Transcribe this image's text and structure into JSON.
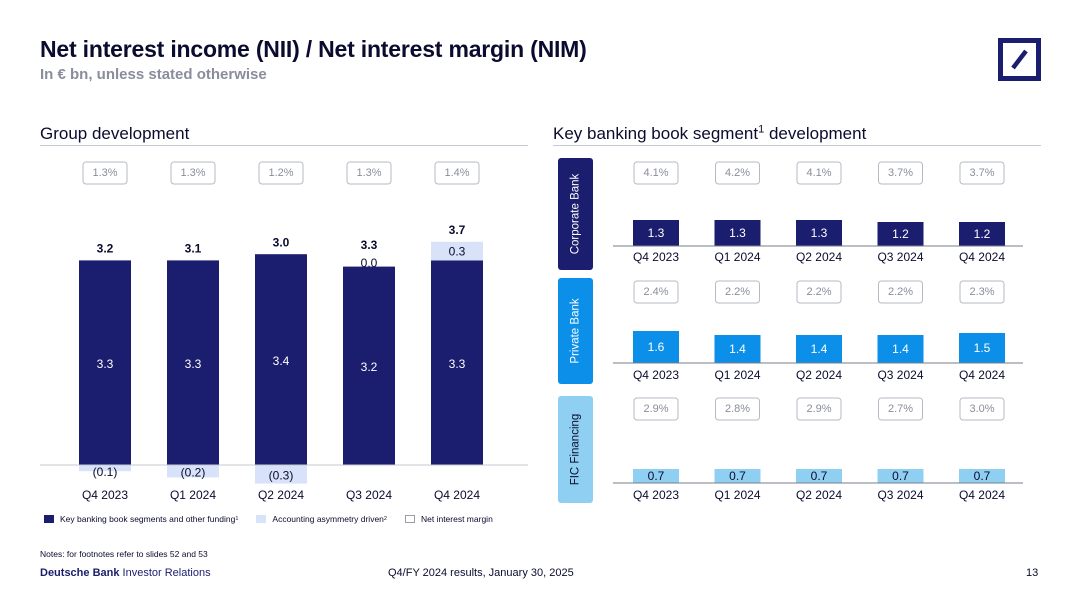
{
  "header": {
    "title": "Net interest income (NII) / Net interest margin (NIM)",
    "subtitle": "In € bn, unless stated otherwise"
  },
  "colors": {
    "navy": "#1b1d6e",
    "light_blue": "#d8e2f8",
    "private_blue": "#0b8fe8",
    "fic_blue": "#8fd0f2",
    "nim_border": "#b7bac4",
    "nim_text": "#8a8d9c"
  },
  "logo": {
    "name": "deutsche-bank-logo-icon"
  },
  "left_section": {
    "title": "Group development"
  },
  "right_section": {
    "title": "Key banking book segment",
    "title_sup": "1",
    "title_suffix": " development"
  },
  "legend": [
    {
      "label": "Key banking book segments and other funding",
      "sup": "1",
      "swatch": "navy"
    },
    {
      "label": "Accounting asymmetry driven",
      "sup": "2",
      "swatch": "light"
    },
    {
      "label": "Net interest margin",
      "sup": "",
      "swatch": "white"
    }
  ],
  "notes": "Notes: for footnotes refer to slides 52 and 53",
  "footer": {
    "brand_bold": "Deutsche Bank",
    "brand_rest": " Investor Relations",
    "center": "Q4/FY 2024 results, January 30, 2025",
    "page": "13"
  },
  "chart_data": [
    {
      "type": "bar",
      "title": "Group development",
      "stacked": true,
      "categories": [
        "Q4 2023",
        "Q1 2024",
        "Q2 2024",
        "Q3 2024",
        "Q4 2024"
      ],
      "nim": [
        "1.3%",
        "1.3%",
        "1.2%",
        "1.3%",
        "1.4%"
      ],
      "totals": [
        "3.2",
        "3.1",
        "3.0",
        "3.3",
        "3.7"
      ],
      "series": [
        {
          "name": "Key banking book segments and other funding",
          "values": [
            3.3,
            3.3,
            3.4,
            3.2,
            3.3
          ],
          "labels": [
            "3.3",
            "3.3",
            "3.4",
            "3.2",
            "3.3"
          ]
        },
        {
          "name": "Accounting asymmetry driven",
          "values": [
            -0.1,
            -0.2,
            -0.3,
            0.0,
            0.3
          ],
          "labels": [
            "(0.1)",
            "(0.2)",
            "(0.3)",
            "0.0",
            "0.3"
          ]
        }
      ],
      "ylim": [
        -0.3,
        3.7
      ]
    },
    {
      "type": "bar",
      "title": "Key banking book segment development",
      "categories": [
        "Q4 2023",
        "Q1 2024",
        "Q2 2024",
        "Q3 2024",
        "Q4 2024"
      ],
      "segments": [
        {
          "name": "Corporate Bank",
          "color": "#1b1d6e",
          "nim": [
            "4.1%",
            "4.2%",
            "4.1%",
            "3.7%",
            "3.7%"
          ],
          "values": [
            1.3,
            1.3,
            1.3,
            1.2,
            1.2
          ],
          "labels": [
            "1.3",
            "1.3",
            "1.3",
            "1.2",
            "1.2"
          ]
        },
        {
          "name": "Private Bank",
          "color": "#0b8fe8",
          "nim": [
            "2.4%",
            "2.2%",
            "2.2%",
            "2.2%",
            "2.3%"
          ],
          "values": [
            1.6,
            1.4,
            1.4,
            1.4,
            1.5
          ],
          "labels": [
            "1.6",
            "1.4",
            "1.4",
            "1.4",
            "1.5"
          ]
        },
        {
          "name": "FIC Financing",
          "color": "#8fd0f2",
          "nim": [
            "2.9%",
            "2.8%",
            "2.9%",
            "2.7%",
            "3.0%"
          ],
          "values": [
            0.7,
            0.7,
            0.7,
            0.7,
            0.7
          ],
          "labels": [
            "0.7",
            "0.7",
            "0.7",
            "0.7",
            "0.7"
          ]
        }
      ]
    }
  ]
}
